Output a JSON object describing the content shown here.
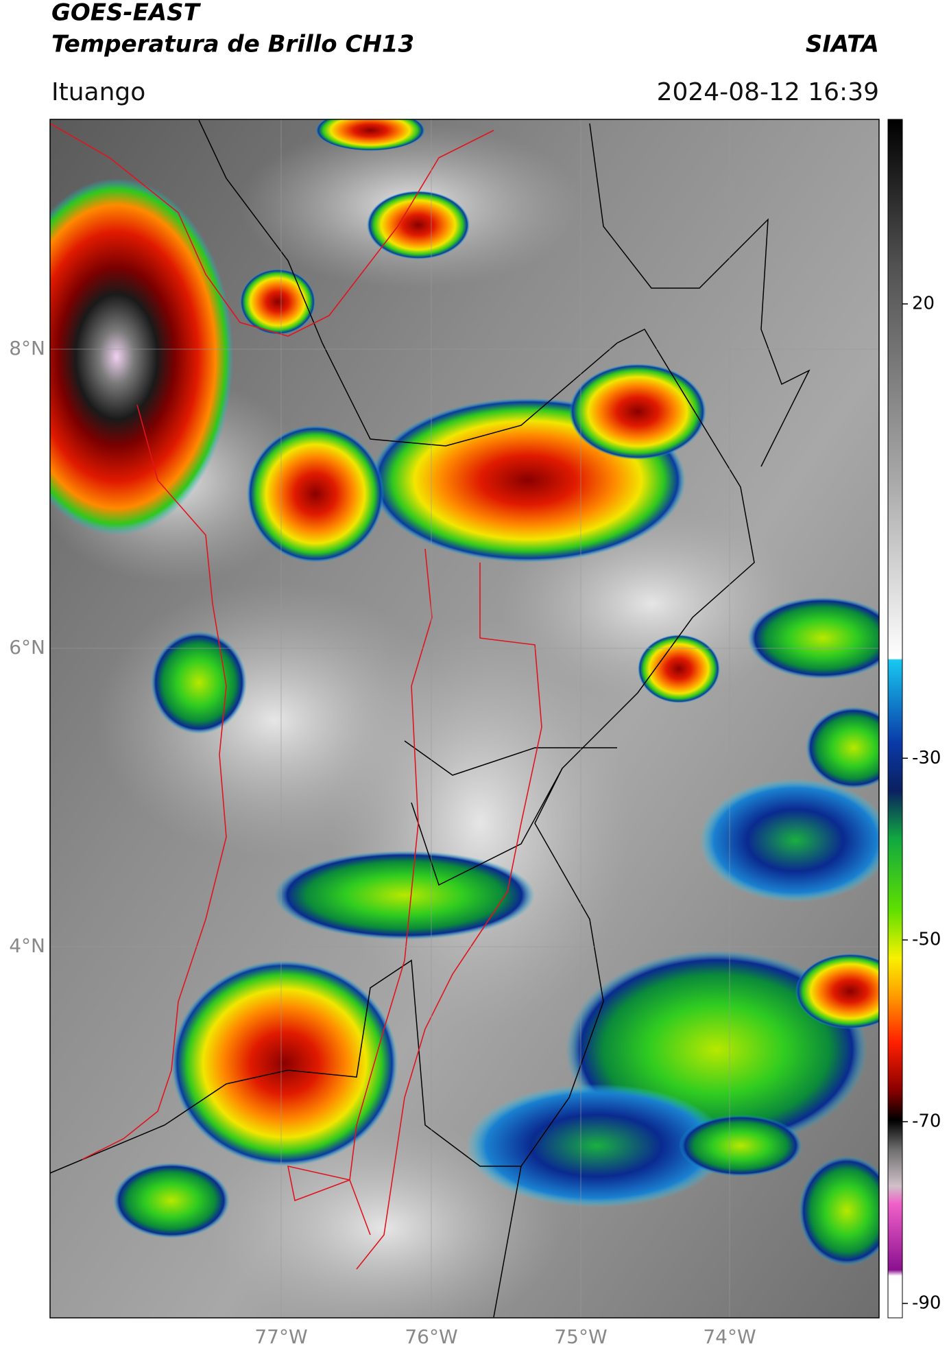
{
  "header": {
    "title": "GOES-EAST",
    "product": "Temperatura de Brillo CH13",
    "organization": "SIATA",
    "location": "Ituango",
    "timestamp": "2024-08-12 16:39"
  },
  "map": {
    "latitude_labels": [
      "8°N",
      "6°N",
      "4°N"
    ],
    "longitude_labels": [
      "77°W",
      "76°W",
      "75°W",
      "74°W"
    ]
  },
  "colorbar": {
    "ticks": [
      20,
      -30,
      -50,
      -70,
      -90
    ]
  }
}
